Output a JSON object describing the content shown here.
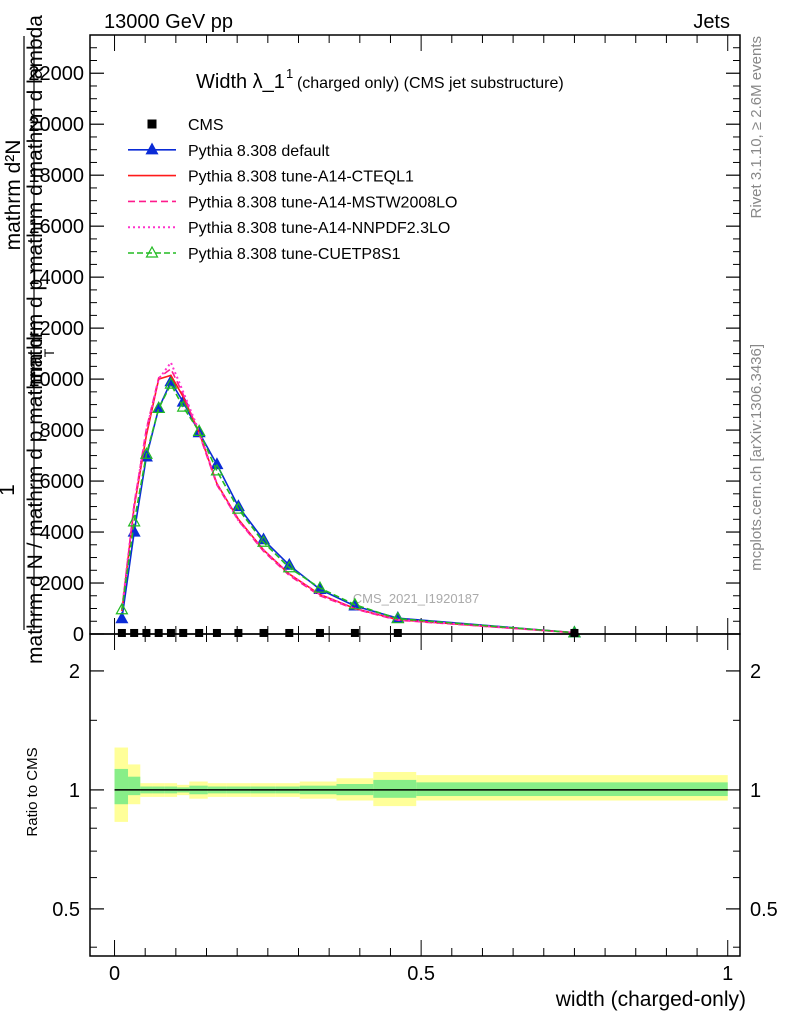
{
  "header": {
    "left": "13000 GeV pp",
    "right": "Jets"
  },
  "side_labels": {
    "top": "Rivet 3.1.10, ≥ 2.6M events",
    "bottom": "mcplots.cern.ch [arXiv:1306.3436]"
  },
  "watermark": "CMS_2021_I1920187",
  "chart_data": [
    {
      "type": "line",
      "title": "Width λ_1",
      "title_sup": "1",
      "title_suffix": "(charged only) (CMS jet substructure)",
      "ylabel_lines": [
        "mathrm d²N",
        "mathrm d p mathrm d mathrm d lambda",
        "1",
        "mathrm d N / mathrm d p mathrm d",
        "T"
      ],
      "xlim": [
        -0.04,
        1.02
      ],
      "ylim": [
        0,
        23500
      ],
      "y_ticks": [
        0,
        2000,
        4000,
        6000,
        8000,
        10000,
        12000,
        14000,
        16000,
        18000,
        20000,
        22000
      ],
      "y_tick_labels": [
        "0",
        "2000",
        "4000",
        "6000",
        "8000",
        "10000",
        "12000",
        "14000",
        "16000",
        "18000",
        "20000",
        "22000"
      ],
      "legend_position": "top-left",
      "cms": {
        "name": "CMS",
        "x": [
          0.012,
          0.032,
          0.052,
          0.072,
          0.092,
          0.112,
          0.138,
          0.167,
          0.202,
          0.243,
          0.285,
          0.335,
          0.392,
          0.462,
          0.75
        ],
        "y": [
          40,
          40,
          40,
          40,
          40,
          40,
          40,
          40,
          40,
          40,
          40,
          40,
          40,
          40,
          40
        ]
      },
      "series": [
        {
          "name": "Pythia 8.308 default",
          "color": "#0a2bd6",
          "dash": "",
          "marker": "triangle-filled",
          "x": [
            0.012,
            0.032,
            0.052,
            0.072,
            0.092,
            0.112,
            0.138,
            0.167,
            0.202,
            0.243,
            0.285,
            0.335,
            0.392,
            0.462,
            0.75
          ],
          "y": [
            600,
            4000,
            6950,
            8850,
            9900,
            9100,
            7900,
            6650,
            5000,
            3700,
            2700,
            1750,
            1100,
            620,
            50
          ]
        },
        {
          "name": "Pythia 8.308 tune-A14-CTEQL1",
          "color": "#ff1a1a",
          "dash": "",
          "marker": "none",
          "x": [
            0.012,
            0.032,
            0.052,
            0.072,
            0.092,
            0.112,
            0.138,
            0.167,
            0.202,
            0.243,
            0.285,
            0.335,
            0.392,
            0.462,
            0.75
          ],
          "y": [
            900,
            5000,
            7800,
            10000,
            10150,
            9300,
            7900,
            5900,
            4500,
            3300,
            2350,
            1550,
            1000,
            560,
            50
          ]
        },
        {
          "name": "Pythia 8.308 tune-A14-MSTW2008LO",
          "color": "#ff1a8c",
          "dash": "7,4",
          "marker": "none",
          "x": [
            0.012,
            0.032,
            0.052,
            0.072,
            0.092,
            0.112,
            0.138,
            0.167,
            0.202,
            0.243,
            0.285,
            0.335,
            0.392,
            0.462,
            0.75
          ],
          "y": [
            950,
            5100,
            8050,
            10050,
            10400,
            9400,
            7850,
            5850,
            4450,
            3250,
            2300,
            1500,
            980,
            540,
            50
          ]
        },
        {
          "name": "Pythia 8.308 tune-A14-NNPDF2.3LO",
          "color": "#ff33cc",
          "dash": "2,3",
          "marker": "none",
          "x": [
            0.012,
            0.032,
            0.052,
            0.072,
            0.092,
            0.112,
            0.138,
            0.167,
            0.202,
            0.243,
            0.285,
            0.335,
            0.392,
            0.462,
            0.75
          ],
          "y": [
            950,
            5100,
            8000,
            10000,
            10650,
            9500,
            7950,
            5900,
            4450,
            3300,
            2350,
            1550,
            1000,
            560,
            50
          ]
        },
        {
          "name": "Pythia 8.308 tune-CUETP8S1",
          "color": "#22bb22",
          "dash": "6,3",
          "marker": "triangle-open",
          "x": [
            0.012,
            0.032,
            0.052,
            0.072,
            0.092,
            0.112,
            0.138,
            0.167,
            0.202,
            0.243,
            0.285,
            0.335,
            0.392,
            0.462,
            0.75
          ],
          "y": [
            950,
            4400,
            7050,
            8850,
            9800,
            8900,
            7950,
            6400,
            4900,
            3600,
            2600,
            1800,
            1150,
            600,
            50
          ]
        }
      ]
    },
    {
      "type": "area",
      "ylabel": "Ratio to CMS",
      "xlabel": "width (charged-only)",
      "xlim": [
        -0.04,
        1.02
      ],
      "ylim": [
        0.38,
        2.48
      ],
      "y_ticks": [
        0.5,
        1,
        2
      ],
      "y_tick_labels": [
        "0.5",
        "1",
        "2"
      ],
      "x_ticks": [
        0,
        0.5,
        1
      ],
      "x_tick_labels": [
        "0",
        "0.5",
        "1"
      ],
      "reference": 1,
      "bands": {
        "edges": [
          0.0,
          0.022,
          0.042,
          0.062,
          0.082,
          0.102,
          0.122,
          0.152,
          0.182,
          0.222,
          0.262,
          0.302,
          0.362,
          0.422,
          0.492,
          1.0
        ],
        "yellow": [
          [
            0.83,
            1.28
          ],
          [
            0.92,
            1.16
          ],
          [
            0.96,
            1.04
          ],
          [
            0.96,
            1.04
          ],
          [
            0.96,
            1.04
          ],
          [
            0.97,
            1.03
          ],
          [
            0.95,
            1.05
          ],
          [
            0.96,
            1.04
          ],
          [
            0.96,
            1.04
          ],
          [
            0.96,
            1.04
          ],
          [
            0.96,
            1.04
          ],
          [
            0.95,
            1.05
          ],
          [
            0.94,
            1.07
          ],
          [
            0.91,
            1.11
          ],
          [
            0.94,
            1.09
          ]
        ],
        "green": [
          [
            0.92,
            1.13
          ],
          [
            0.97,
            1.08
          ],
          [
            0.98,
            1.02
          ],
          [
            0.98,
            1.02
          ],
          [
            0.98,
            1.02
          ],
          [
            0.985,
            1.015
          ],
          [
            0.975,
            1.025
          ],
          [
            0.98,
            1.02
          ],
          [
            0.98,
            1.02
          ],
          [
            0.98,
            1.02
          ],
          [
            0.98,
            1.02
          ],
          [
            0.975,
            1.025
          ],
          [
            0.97,
            1.035
          ],
          [
            0.955,
            1.06
          ],
          [
            0.965,
            1.045
          ]
        ]
      }
    }
  ]
}
